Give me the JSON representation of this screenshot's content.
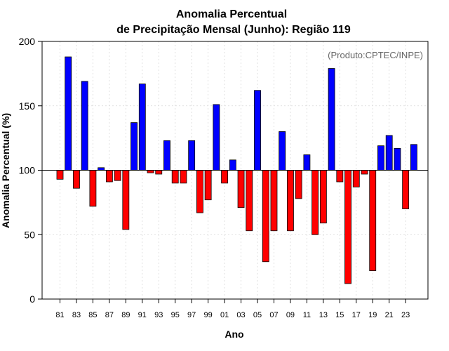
{
  "chart_data": {
    "type": "bar",
    "title": "Anomalia Percentual",
    "subtitle": "de Precipitação Mensal (Junho): Região 119",
    "xlabel": "Ano",
    "ylabel": "Anomalia Percentual (%)",
    "annotation": "(Produto:CPTEC/INPE)",
    "ylim": [
      0,
      200
    ],
    "yticks": [
      0,
      50,
      100,
      150,
      200
    ],
    "baseline": 100,
    "grid": true,
    "colors": {
      "above": "#0000ff",
      "below": "#ff0000"
    },
    "x_tick_labels": [
      "81",
      "83",
      "85",
      "87",
      "89",
      "91",
      "93",
      "95",
      "97",
      "99",
      "01",
      "03",
      "05",
      "07",
      "09",
      "11",
      "13",
      "15",
      "17",
      "19",
      "21",
      "23"
    ],
    "categories": [
      "1981",
      "1982",
      "1983",
      "1984",
      "1985",
      "1986",
      "1987",
      "1988",
      "1989",
      "1990",
      "1991",
      "1992",
      "1993",
      "1994",
      "1995",
      "1996",
      "1997",
      "1998",
      "1999",
      "2000",
      "2001",
      "2002",
      "2003",
      "2004",
      "2005",
      "2006",
      "2007",
      "2008",
      "2009",
      "2010",
      "2011",
      "2012",
      "2013",
      "2014",
      "2015",
      "2016",
      "2017",
      "2018",
      "2019",
      "2020",
      "2021",
      "2022",
      "2023",
      "2024"
    ],
    "values": [
      93,
      188,
      86,
      169,
      72,
      102,
      91,
      92,
      54,
      137,
      167,
      98,
      97,
      123,
      90,
      90,
      123,
      67,
      77,
      151,
      90,
      108,
      71,
      53,
      162,
      29,
      53,
      130,
      53,
      78,
      112,
      50,
      59,
      179,
      91,
      12,
      87,
      97,
      22,
      119,
      127,
      117,
      70,
      120
    ]
  }
}
